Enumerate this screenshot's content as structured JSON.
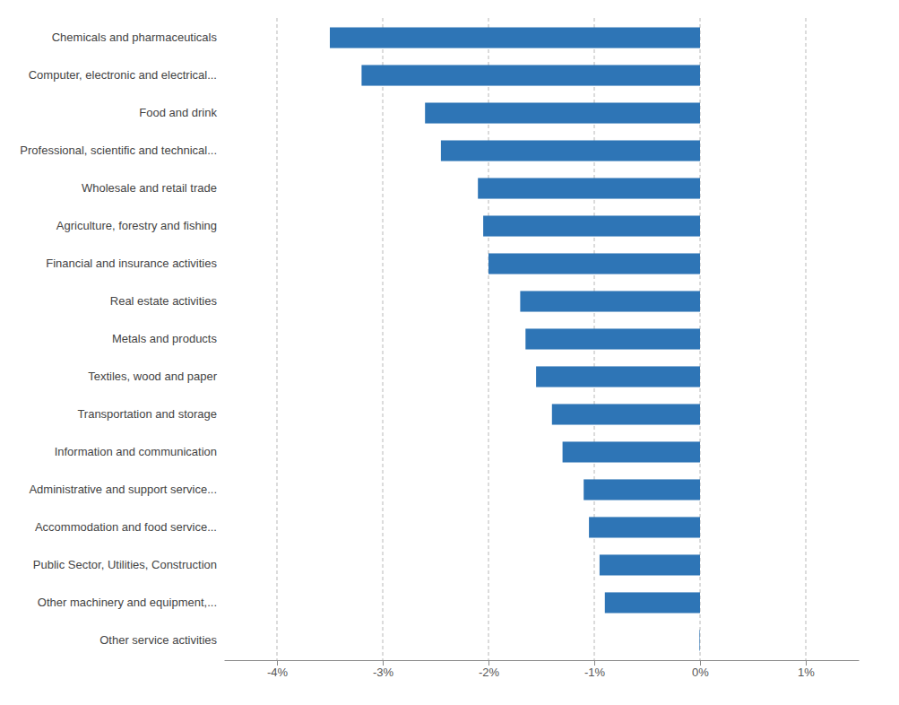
{
  "chart_data": {
    "type": "bar",
    "orientation": "horizontal",
    "categories": [
      "Chemicals and pharmaceuticals",
      "Computer, electronic and electrical...",
      "Food and drink",
      "Professional, scientific and technical...",
      "Wholesale and retail trade",
      "Agriculture, forestry and fishing",
      "Financial and insurance activities",
      "Real estate activities",
      "Metals and products",
      "Textiles, wood and paper",
      "Transportation and storage",
      "Information and communication",
      "Administrative and support service...",
      "Accommodation and food service...",
      "Public Sector, Utilities, Construction",
      "Other machinery and equipment,...",
      "Other service activities"
    ],
    "values": [
      -3.5,
      -3.2,
      -2.6,
      -2.45,
      -2.1,
      -2.05,
      -2.0,
      -1.7,
      -1.65,
      -1.55,
      -1.4,
      -1.3,
      -1.1,
      -1.05,
      -0.95,
      -0.9,
      -0.005
    ],
    "color": "#2e75b6",
    "xlim": [
      -4.5,
      1.5
    ],
    "xticks": [
      {
        "value": -4,
        "label": "-4%"
      },
      {
        "value": -3,
        "label": "-3%"
      },
      {
        "value": -2,
        "label": "-2%"
      },
      {
        "value": -1,
        "label": "-1%"
      },
      {
        "value": 0,
        "label": "0%"
      },
      {
        "value": 1,
        "label": "1%"
      }
    ],
    "grid": true
  }
}
